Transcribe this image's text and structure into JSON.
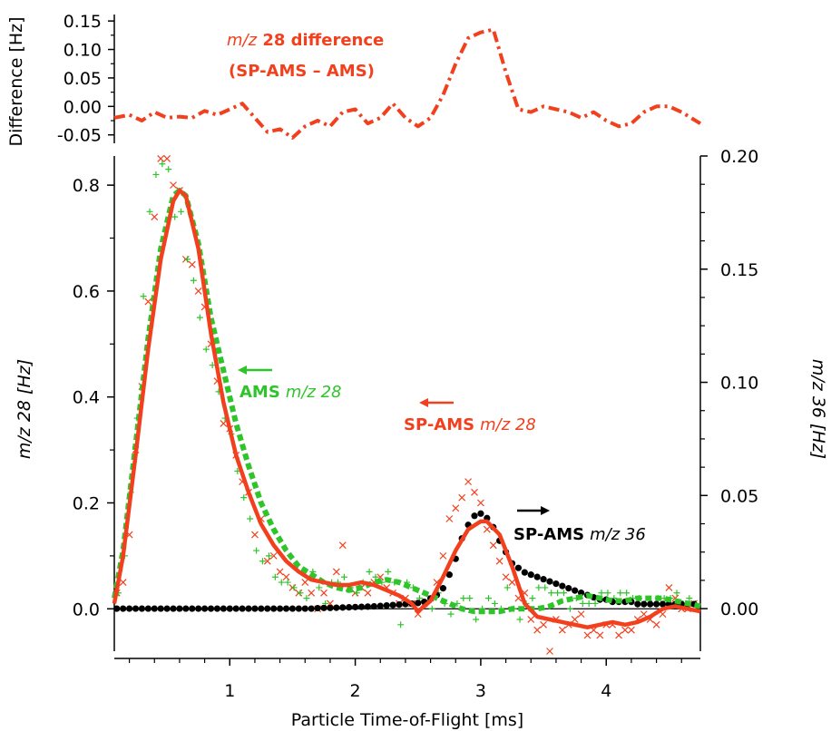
{
  "colors": {
    "red": "#f2401e",
    "green": "#2ec42a",
    "black": "#000000"
  },
  "chart_data": [
    {
      "type": "line",
      "panel": "top",
      "title": "",
      "ylabel": "Difference [Hz]",
      "ylim": [
        -0.06,
        0.155
      ],
      "xlim": [
        0.08,
        4.75
      ],
      "yticks": [
        -0.05,
        0.0,
        0.05,
        0.1,
        0.15
      ],
      "ytick_labels": [
        "-0.05",
        "0.00",
        "0.05",
        "0.10",
        "0.15"
      ],
      "annotation": {
        "prefix": "m/z",
        "rest": " 28 difference",
        "line2": "(SP-AMS – AMS)"
      },
      "series": [
        {
          "style": "dash-dot",
          "x": [
            0.08,
            0.2,
            0.3,
            0.4,
            0.5,
            0.6,
            0.7,
            0.8,
            0.9,
            1.0,
            1.1,
            1.2,
            1.3,
            1.4,
            1.5,
            1.6,
            1.7,
            1.8,
            1.9,
            2.0,
            2.1,
            2.2,
            2.3,
            2.4,
            2.5,
            2.6,
            2.7,
            2.8,
            2.9,
            3.0,
            3.1,
            3.2,
            3.3,
            3.4,
            3.5,
            3.6,
            3.7,
            3.8,
            3.9,
            4.0,
            4.1,
            4.2,
            4.3,
            4.4,
            4.5,
            4.6,
            4.75
          ],
          "y": [
            -0.02,
            -0.015,
            -0.025,
            -0.01,
            -0.02,
            -0.018,
            -0.02,
            -0.008,
            -0.015,
            -0.005,
            0.005,
            -0.02,
            -0.045,
            -0.04,
            -0.055,
            -0.035,
            -0.025,
            -0.035,
            -0.01,
            -0.005,
            -0.03,
            -0.02,
            0.005,
            -0.02,
            -0.035,
            -0.02,
            0.02,
            0.075,
            0.12,
            0.13,
            0.135,
            0.06,
            -0.005,
            -0.01,
            0.0,
            -0.005,
            -0.01,
            -0.02,
            -0.01,
            -0.025,
            -0.035,
            -0.03,
            -0.01,
            0.0,
            0.0,
            -0.01,
            -0.03
          ]
        }
      ]
    },
    {
      "type": "scatter",
      "panel": "main",
      "title": "",
      "xlabel": "Particle Time-of-Flight [ms]",
      "ylabel": "m/z 28 [Hz]",
      "ylabel_right": "m/z 36 [Hz]",
      "xlim": [
        0.08,
        4.75
      ],
      "ylim": [
        -0.08,
        0.855
      ],
      "ylim_right": [
        -0.0188,
        0.2
      ],
      "xticks": [
        1,
        2,
        3,
        4
      ],
      "xtick_labels": [
        "1",
        "2",
        "3",
        "4"
      ],
      "yticks": [
        0.0,
        0.2,
        0.4,
        0.6,
        0.8
      ],
      "ytick_labels": [
        "0.0",
        "0.2",
        "0.4",
        "0.6",
        "0.8"
      ],
      "yticks_right": [
        0.0,
        0.05,
        0.1,
        0.15,
        0.2
      ],
      "ytick_labels_right": [
        "0.00",
        "0.05",
        "0.10",
        "0.15",
        "0.20"
      ],
      "grid": false,
      "annotations": [
        {
          "bold": "AMS",
          "italic": "m/z 28"
        },
        {
          "bold": "SP-AMS",
          "italic": "m/z 28"
        },
        {
          "bold": "SP-AMS",
          "italic": "m/z 36"
        }
      ],
      "series": [
        {
          "style": "solid-line",
          "axis": "left",
          "x": [
            0.08,
            0.15,
            0.25,
            0.35,
            0.45,
            0.55,
            0.6,
            0.65,
            0.75,
            0.85,
            0.95,
            1.05,
            1.15,
            1.25,
            1.35,
            1.45,
            1.55,
            1.65,
            1.75,
            1.85,
            1.95,
            2.05,
            2.15,
            2.25,
            2.35,
            2.45,
            2.5,
            2.6,
            2.7,
            2.8,
            2.9,
            3.0,
            3.05,
            3.15,
            3.25,
            3.35,
            3.45,
            3.55,
            3.65,
            3.75,
            3.85,
            3.95,
            4.05,
            4.15,
            4.25,
            4.35,
            4.45,
            4.55,
            4.65,
            4.75
          ],
          "y": [
            0.01,
            0.1,
            0.29,
            0.49,
            0.66,
            0.77,
            0.79,
            0.78,
            0.68,
            0.52,
            0.39,
            0.29,
            0.22,
            0.16,
            0.12,
            0.09,
            0.07,
            0.055,
            0.05,
            0.045,
            0.045,
            0.05,
            0.045,
            0.035,
            0.025,
            0.01,
            -0.005,
            0.015,
            0.06,
            0.11,
            0.15,
            0.165,
            0.165,
            0.14,
            0.08,
            0.01,
            -0.015,
            -0.02,
            -0.025,
            -0.03,
            -0.035,
            -0.03,
            -0.025,
            -0.03,
            -0.025,
            -0.015,
            0.0,
            0.005,
            0.0,
            -0.005
          ]
        },
        {
          "style": "dotted-line",
          "axis": "left",
          "x": [
            0.08,
            0.15,
            0.25,
            0.35,
            0.45,
            0.55,
            0.6,
            0.65,
            0.75,
            0.85,
            0.95,
            1.05,
            1.15,
            1.25,
            1.35,
            1.45,
            1.55,
            1.65,
            1.75,
            1.85,
            1.95,
            2.05,
            2.15,
            2.25,
            2.35,
            2.45,
            2.55,
            2.65,
            2.75,
            2.85,
            2.95,
            3.05,
            3.15,
            3.25,
            3.35,
            3.45,
            3.55,
            3.65,
            3.75,
            3.85,
            3.95,
            4.05,
            4.15,
            4.25,
            4.35,
            4.45,
            4.55,
            4.65,
            4.75
          ],
          "y": [
            0.02,
            0.11,
            0.31,
            0.51,
            0.68,
            0.78,
            0.79,
            0.78,
            0.69,
            0.55,
            0.45,
            0.35,
            0.27,
            0.2,
            0.15,
            0.11,
            0.08,
            0.065,
            0.05,
            0.04,
            0.035,
            0.04,
            0.05,
            0.055,
            0.05,
            0.04,
            0.03,
            0.02,
            0.01,
            0.0,
            -0.005,
            -0.005,
            -0.005,
            0.0,
            0.0,
            0.0,
            0.005,
            0.015,
            0.02,
            0.025,
            0.02,
            0.015,
            0.015,
            0.02,
            0.02,
            0.02,
            0.015,
            0.01,
            0.005
          ]
        },
        {
          "style": "cross-markers",
          "axis": "left",
          "x": [
            0.1,
            0.15,
            0.2,
            0.25,
            0.3,
            0.35,
            0.4,
            0.45,
            0.5,
            0.55,
            0.6,
            0.65,
            0.7,
            0.75,
            0.8,
            0.85,
            0.9,
            0.95,
            1.0,
            1.05,
            1.1,
            1.15,
            1.2,
            1.25,
            1.3,
            1.35,
            1.4,
            1.45,
            1.5,
            1.55,
            1.6,
            1.65,
            1.7,
            1.75,
            1.8,
            1.85,
            1.9,
            1.95,
            2.0,
            2.05,
            2.1,
            2.15,
            2.2,
            2.25,
            2.3,
            2.35,
            2.4,
            2.45,
            2.5,
            2.55,
            2.6,
            2.65,
            2.7,
            2.75,
            2.8,
            2.85,
            2.9,
            2.95,
            3.0,
            3.05,
            3.1,
            3.15,
            3.2,
            3.25,
            3.3,
            3.35,
            3.4,
            3.45,
            3.5,
            3.55,
            3.6,
            3.65,
            3.7,
            3.75,
            3.8,
            3.85,
            3.9,
            3.95,
            4.0,
            4.05,
            4.1,
            4.15,
            4.2,
            4.25,
            4.3,
            4.35,
            4.4,
            4.45,
            4.5,
            4.55,
            4.6,
            4.65,
            4.7
          ],
          "y": [
            0.03,
            0.05,
            0.14,
            0.3,
            0.42,
            0.58,
            0.74,
            0.85,
            0.85,
            0.8,
            0.79,
            0.66,
            0.65,
            0.6,
            0.57,
            0.5,
            0.43,
            0.35,
            0.34,
            0.29,
            0.24,
            0.22,
            0.14,
            0.17,
            0.09,
            0.1,
            0.07,
            0.06,
            0.04,
            0.03,
            0.05,
            0.03,
            0.0,
            0.03,
            0.01,
            0.07,
            0.12,
            0.04,
            0.03,
            0.04,
            0.03,
            0.05,
            0.06,
            0.04,
            0.03,
            0.01,
            0.02,
            0.01,
            -0.01,
            0.01,
            0.02,
            0.05,
            0.1,
            0.17,
            0.19,
            0.21,
            0.24,
            0.22,
            0.2,
            0.15,
            0.12,
            0.09,
            0.06,
            0.05,
            0.02,
            0.03,
            -0.02,
            -0.04,
            -0.03,
            -0.08,
            -0.02,
            -0.04,
            -0.03,
            -0.02,
            -0.01,
            -0.05,
            -0.04,
            -0.05,
            -0.03,
            -0.03,
            -0.05,
            -0.04,
            -0.04,
            -0.02,
            -0.01,
            -0.02,
            -0.03,
            -0.01,
            0.04,
            0.02,
            0.0,
            0.0,
            0.01
          ]
        },
        {
          "style": "plus-markers",
          "axis": "left",
          "x": [
            0.1,
            0.15,
            0.2,
            0.25,
            0.3,
            0.35,
            0.4,
            0.45,
            0.5,
            0.55,
            0.6,
            0.65,
            0.7,
            0.75,
            0.8,
            0.85,
            0.9,
            0.95,
            1.0,
            1.05,
            1.1,
            1.15,
            1.2,
            1.25,
            1.3,
            1.35,
            1.4,
            1.45,
            1.5,
            1.55,
            1.6,
            1.65,
            1.7,
            1.75,
            1.8,
            1.85,
            1.9,
            1.95,
            2.0,
            2.05,
            2.1,
            2.15,
            2.2,
            2.25,
            2.3,
            2.35,
            2.4,
            2.45,
            2.5,
            2.55,
            2.6,
            2.65,
            2.7,
            2.75,
            2.8,
            2.85,
            2.9,
            2.95,
            3.0,
            3.05,
            3.1,
            3.15,
            3.2,
            3.25,
            3.3,
            3.35,
            3.4,
            3.45,
            3.5,
            3.55,
            3.6,
            3.65,
            3.7,
            3.75,
            3.8,
            3.85,
            3.9,
            3.95,
            4.0,
            4.05,
            4.1,
            4.15,
            4.2,
            4.25,
            4.3,
            4.35,
            4.4,
            4.45,
            4.5,
            4.55,
            4.6,
            4.65,
            4.7
          ],
          "y": [
            0.03,
            0.1,
            0.22,
            0.36,
            0.59,
            0.75,
            0.82,
            0.84,
            0.83,
            0.74,
            0.75,
            0.66,
            0.62,
            0.55,
            0.49,
            0.46,
            0.41,
            0.36,
            0.33,
            0.26,
            0.21,
            0.17,
            0.11,
            0.09,
            0.1,
            0.06,
            0.05,
            0.05,
            0.04,
            0.03,
            0.02,
            0.07,
            0.04,
            0.01,
            0.05,
            0.05,
            0.06,
            0.04,
            0.03,
            0.05,
            0.07,
            0.06,
            0.05,
            0.07,
            0.05,
            -0.03,
            0.05,
            0.04,
            0.02,
            0.01,
            0.0,
            0.03,
            0.01,
            -0.01,
            0.01,
            0.02,
            0.02,
            -0.02,
            0.0,
            0.02,
            0.01,
            0.0,
            0.04,
            0.0,
            -0.02,
            0.01,
            0.02,
            0.04,
            0.04,
            0.03,
            0.03,
            0.03,
            0.0,
            0.02,
            0.01,
            0.01,
            0.01,
            0.03,
            0.03,
            0.02,
            0.03,
            0.03,
            0.02,
            0.02,
            0.01,
            0.01,
            0.02,
            0.02,
            0.02,
            0.03,
            0.01,
            0.02,
            0.01
          ]
        },
        {
          "style": "dot-markers",
          "axis": "right",
          "x": [
            0.1,
            0.15,
            0.2,
            0.25,
            0.3,
            0.35,
            0.4,
            0.45,
            0.5,
            0.55,
            0.6,
            0.65,
            0.7,
            0.75,
            0.8,
            0.85,
            0.9,
            0.95,
            1.0,
            1.05,
            1.1,
            1.15,
            1.2,
            1.25,
            1.3,
            1.35,
            1.4,
            1.45,
            1.5,
            1.55,
            1.6,
            1.65,
            1.7,
            1.75,
            1.8,
            1.85,
            1.9,
            1.95,
            2.0,
            2.05,
            2.1,
            2.15,
            2.2,
            2.25,
            2.3,
            2.35,
            2.4,
            2.45,
            2.5,
            2.55,
            2.6,
            2.65,
            2.7,
            2.75,
            2.8,
            2.85,
            2.9,
            2.95,
            3.0,
            3.05,
            3.1,
            3.15,
            3.2,
            3.25,
            3.3,
            3.35,
            3.4,
            3.45,
            3.5,
            3.55,
            3.6,
            3.65,
            3.7,
            3.75,
            3.8,
            3.85,
            3.9,
            3.95,
            4.0,
            4.05,
            4.1,
            4.15,
            4.2,
            4.25,
            4.3,
            4.35,
            4.4,
            4.45,
            4.5,
            4.55,
            4.6,
            4.65,
            4.7
          ],
          "y": [
            0.0,
            0.0,
            0.0,
            0.0,
            0.0,
            0.0,
            0.0,
            0.0,
            0.0,
            0.0,
            0.0,
            0.0,
            0.0,
            0.0,
            0.0,
            0.0,
            0.0,
            0.0,
            0.0,
            0.0,
            0.0,
            0.0,
            0.0,
            0.0,
            0.0,
            0.0,
            0.0,
            0.0,
            0.0,
            0.0,
            0.0,
            0.0,
            0.0002,
            0.0003,
            0.0003,
            0.0004,
            0.0005,
            0.0006,
            0.0007,
            0.0008,
            0.0009,
            0.001,
            0.0012,
            0.0014,
            0.0016,
            0.0018,
            0.002,
            0.0022,
            0.0025,
            0.003,
            0.0045,
            0.006,
            0.009,
            0.015,
            0.022,
            0.031,
            0.037,
            0.041,
            0.042,
            0.04,
            0.036,
            0.03,
            0.025,
            0.02,
            0.018,
            0.016,
            0.015,
            0.014,
            0.013,
            0.012,
            0.011,
            0.01,
            0.009,
            0.008,
            0.007,
            0.006,
            0.005,
            0.004,
            0.004,
            0.003,
            0.003,
            0.003,
            0.003,
            0.002,
            0.002,
            0.002,
            0.002,
            0.002,
            0.002,
            0.002,
            0.002,
            0.002,
            0.002
          ]
        }
      ]
    }
  ]
}
